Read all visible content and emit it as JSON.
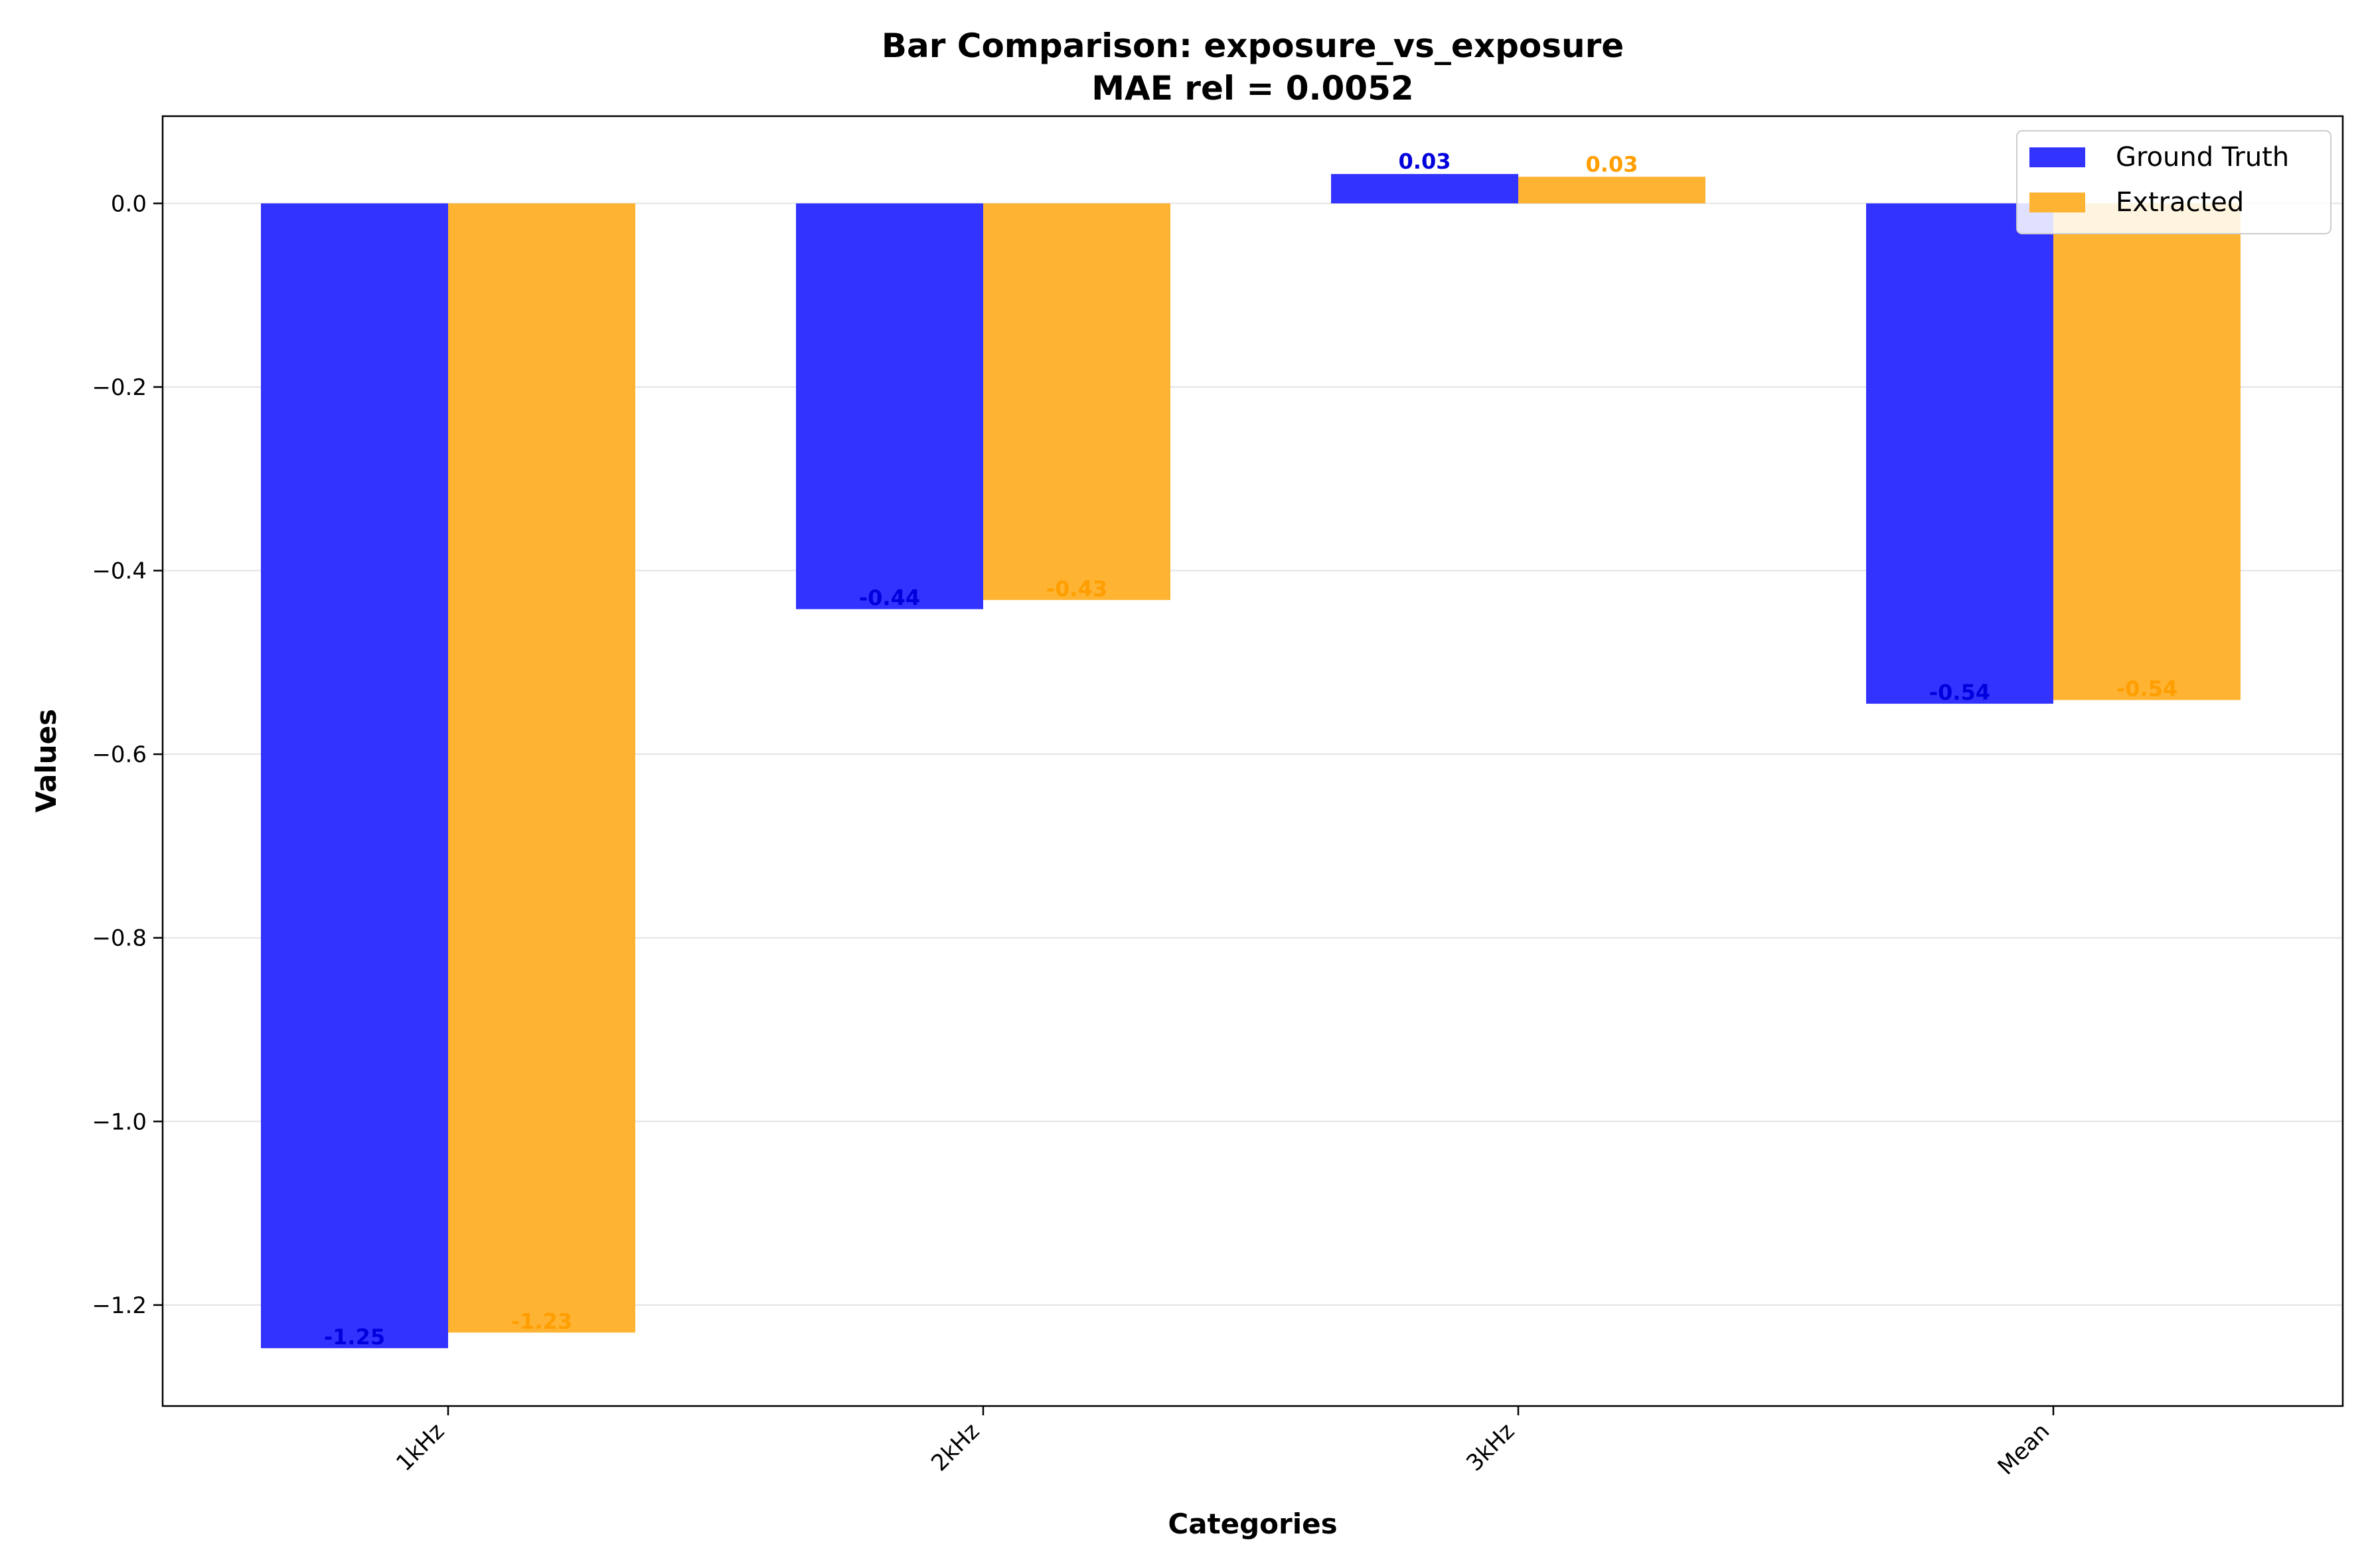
{
  "chart_data": {
    "type": "bar",
    "title": "Bar Comparison: exposure_vs_exposure",
    "subtitle": "MAE rel = 0.0052",
    "xlabel": "Categories",
    "ylabel": "Values",
    "categories": [
      "1kHz",
      "2kHz",
      "3kHz",
      "Mean"
    ],
    "series": [
      {
        "name": "Ground Truth",
        "color": "#3333ff",
        "label_color": "#0000dd",
        "values": [
          -1.247,
          -0.442,
          0.032,
          -0.545
        ],
        "labels": [
          "-1.25",
          "-0.44",
          "0.03",
          "-0.54"
        ]
      },
      {
        "name": "Extracted",
        "color": "#ffb333",
        "label_color": "#ff9e00",
        "values": [
          -1.23,
          -0.432,
          0.029,
          -0.541
        ],
        "labels": [
          "-1.23",
          "-0.43",
          "0.03",
          "-0.54"
        ]
      }
    ],
    "ylim": [
      -1.31,
      0.095
    ],
    "yticks": [
      0.0,
      -0.2,
      -0.4,
      -0.6,
      -0.8,
      -1.0,
      -1.2
    ],
    "ytick_labels": [
      "0.0",
      "−0.2",
      "−0.4",
      "−0.6",
      "−0.8",
      "−1.0",
      "−1.2"
    ],
    "grid": "horizontal",
    "legend": "top-right"
  }
}
